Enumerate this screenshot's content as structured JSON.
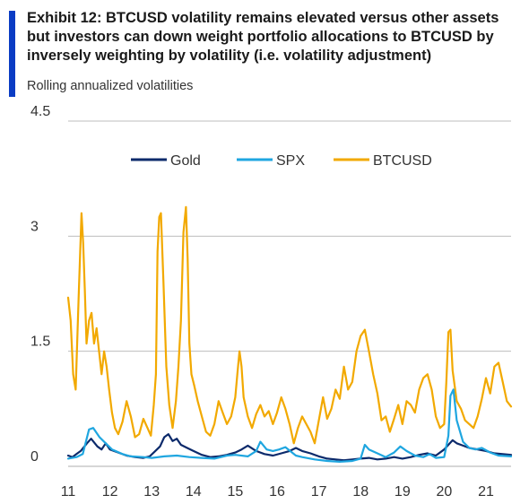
{
  "header": {
    "title": "Exhibit 12: BTCUSD volatility remains elevated versus other assets but investors can down weight portfolio allocations to BTCUSD by inversely weighting by volatility (i.e. volatility adjustment)",
    "subtitle": "Rolling annualized volatilities"
  },
  "colors": {
    "accent": "#0a3cc4",
    "gold": "#0c2a6b",
    "spx": "#1fa6e0",
    "btcusd": "#f2a900",
    "grid": "#bdbdbd"
  },
  "chart_data": {
    "type": "line",
    "title": "Exhibit 12: BTCUSD volatility remains elevated versus other assets but investors can down weight portfolio allocations to BTCUSD by inversely weighting by volatility (i.e. volatility adjustment)",
    "subtitle": "Rolling annualized volatilities",
    "xlabel": "",
    "ylabel": "",
    "xlim": [
      2011.0,
      2021.6
    ],
    "ylim": [
      0,
      4.5
    ],
    "y_ticks": [
      {
        "value": 0,
        "label": "0"
      },
      {
        "value": 1.5,
        "label": "1.5"
      },
      {
        "value": 3,
        "label": "3"
      },
      {
        "value": 4.5,
        "label": "4.5"
      }
    ],
    "x_ticks": [
      {
        "value": 2011,
        "label": "11"
      },
      {
        "value": 2012,
        "label": "12"
      },
      {
        "value": 2013,
        "label": "13"
      },
      {
        "value": 2014,
        "label": "14"
      },
      {
        "value": 2015,
        "label": "15"
      },
      {
        "value": 2016,
        "label": "16"
      },
      {
        "value": 2017,
        "label": "17"
      },
      {
        "value": 2018,
        "label": "18"
      },
      {
        "value": 2019,
        "label": "19"
      },
      {
        "value": 2020,
        "label": "20"
      },
      {
        "value": 2021,
        "label": "21"
      }
    ],
    "grid": true,
    "legend": "top-center",
    "series": [
      {
        "name": "Gold",
        "color": "#0c2a6b",
        "x": [
          2011.0,
          2011.1,
          2011.2,
          2011.3,
          2011.45,
          2011.55,
          2011.7,
          2011.8,
          2011.9,
          2012.0,
          2012.2,
          2012.4,
          2012.6,
          2012.8,
          2012.95,
          2013.05,
          2013.2,
          2013.3,
          2013.4,
          2013.5,
          2013.6,
          2013.7,
          2013.85,
          2014.0,
          2014.2,
          2014.4,
          2014.6,
          2014.8,
          2015.0,
          2015.15,
          2015.3,
          2015.5,
          2015.7,
          2015.9,
          2016.1,
          2016.3,
          2016.45,
          2016.6,
          2016.8,
          2017.0,
          2017.2,
          2017.4,
          2017.6,
          2017.8,
          2018.0,
          2018.2,
          2018.4,
          2018.6,
          2018.8,
          2019.0,
          2019.2,
          2019.4,
          2019.6,
          2019.8,
          2020.0,
          2020.1,
          2020.2,
          2020.3,
          2020.45,
          2020.6,
          2020.8,
          2021.0,
          2021.2,
          2021.4,
          2021.6
        ],
        "values": [
          0.14,
          0.12,
          0.16,
          0.2,
          0.3,
          0.36,
          0.26,
          0.22,
          0.3,
          0.22,
          0.18,
          0.14,
          0.12,
          0.11,
          0.13,
          0.18,
          0.26,
          0.38,
          0.42,
          0.33,
          0.36,
          0.28,
          0.24,
          0.2,
          0.15,
          0.12,
          0.13,
          0.15,
          0.18,
          0.22,
          0.27,
          0.2,
          0.16,
          0.14,
          0.17,
          0.2,
          0.24,
          0.2,
          0.17,
          0.13,
          0.1,
          0.09,
          0.08,
          0.09,
          0.1,
          0.11,
          0.09,
          0.1,
          0.12,
          0.1,
          0.12,
          0.15,
          0.17,
          0.14,
          0.22,
          0.28,
          0.34,
          0.3,
          0.27,
          0.24,
          0.22,
          0.2,
          0.17,
          0.16,
          0.15
        ]
      },
      {
        "name": "SPX",
        "color": "#1fa6e0",
        "x": [
          2011.0,
          2011.2,
          2011.35,
          2011.5,
          2011.6,
          2011.75,
          2011.9,
          2012.05,
          2012.3,
          2012.5,
          2012.8,
          2013.0,
          2013.3,
          2013.6,
          2013.9,
          2014.2,
          2014.5,
          2014.8,
          2015.0,
          2015.3,
          2015.5,
          2015.6,
          2015.75,
          2015.9,
          2016.05,
          2016.2,
          2016.45,
          2016.6,
          2016.9,
          2017.2,
          2017.5,
          2017.8,
          2018.0,
          2018.1,
          2018.2,
          2018.4,
          2018.6,
          2018.8,
          2018.95,
          2019.1,
          2019.3,
          2019.5,
          2019.65,
          2019.8,
          2020.0,
          2020.1,
          2020.15,
          2020.22,
          2020.3,
          2020.45,
          2020.6,
          2020.75,
          2020.9,
          2021.1,
          2021.3,
          2021.6
        ],
        "values": [
          0.1,
          0.12,
          0.16,
          0.48,
          0.5,
          0.38,
          0.3,
          0.22,
          0.16,
          0.13,
          0.12,
          0.11,
          0.13,
          0.14,
          0.12,
          0.11,
          0.1,
          0.14,
          0.15,
          0.13,
          0.2,
          0.32,
          0.22,
          0.2,
          0.22,
          0.25,
          0.14,
          0.12,
          0.09,
          0.07,
          0.06,
          0.07,
          0.1,
          0.28,
          0.22,
          0.17,
          0.12,
          0.18,
          0.26,
          0.2,
          0.14,
          0.12,
          0.16,
          0.11,
          0.12,
          0.4,
          0.92,
          1.0,
          0.6,
          0.32,
          0.24,
          0.22,
          0.24,
          0.18,
          0.14,
          0.13
        ]
      },
      {
        "name": "BTCUSD",
        "color": "#f2a900",
        "x": [
          2011.0,
          2011.06,
          2011.12,
          2011.18,
          2011.25,
          2011.32,
          2011.36,
          2011.4,
          2011.44,
          2011.5,
          2011.56,
          2011.62,
          2011.68,
          2011.74,
          2011.8,
          2011.86,
          2011.92,
          2011.98,
          2012.05,
          2012.12,
          2012.2,
          2012.3,
          2012.4,
          2012.5,
          2012.6,
          2012.7,
          2012.8,
          2012.9,
          2012.98,
          2013.05,
          2013.1,
          2013.14,
          2013.18,
          2013.22,
          2013.28,
          2013.35,
          2013.42,
          2013.5,
          2013.58,
          2013.64,
          2013.7,
          2013.76,
          2013.82,
          2013.86,
          2013.9,
          2013.95,
          2014.02,
          2014.1,
          2014.2,
          2014.3,
          2014.4,
          2014.5,
          2014.6,
          2014.7,
          2014.8,
          2014.9,
          2015.0,
          2015.05,
          2015.1,
          2015.15,
          2015.2,
          2015.3,
          2015.4,
          2015.5,
          2015.6,
          2015.7,
          2015.8,
          2015.9,
          2016.0,
          2016.1,
          2016.2,
          2016.3,
          2016.4,
          2016.5,
          2016.6,
          2016.7,
          2016.8,
          2016.9,
          2017.0,
          2017.1,
          2017.2,
          2017.3,
          2017.4,
          2017.5,
          2017.6,
          2017.7,
          2017.8,
          2017.9,
          2018.0,
          2018.1,
          2018.2,
          2018.3,
          2018.4,
          2018.5,
          2018.6,
          2018.7,
          2018.8,
          2018.9,
          2019.0,
          2019.1,
          2019.2,
          2019.3,
          2019.4,
          2019.5,
          2019.6,
          2019.7,
          2019.8,
          2019.9,
          2020.0,
          2020.05,
          2020.1,
          2020.15,
          2020.2,
          2020.3,
          2020.4,
          2020.5,
          2020.6,
          2020.7,
          2020.8,
          2020.9,
          2021.0,
          2021.1,
          2021.2,
          2021.3,
          2021.4,
          2021.5,
          2021.6
        ],
        "values": [
          2.2,
          1.9,
          1.2,
          1.0,
          2.2,
          3.3,
          2.9,
          2.3,
          1.6,
          1.9,
          2.0,
          1.6,
          1.8,
          1.5,
          1.2,
          1.5,
          1.3,
          1.0,
          0.7,
          0.5,
          0.42,
          0.58,
          0.85,
          0.65,
          0.38,
          0.42,
          0.62,
          0.5,
          0.4,
          0.8,
          1.2,
          2.8,
          3.25,
          3.3,
          2.4,
          1.3,
          0.8,
          0.5,
          0.85,
          1.3,
          1.9,
          3.05,
          3.38,
          2.7,
          1.6,
          1.2,
          1.05,
          0.85,
          0.65,
          0.45,
          0.4,
          0.55,
          0.85,
          0.7,
          0.55,
          0.65,
          0.9,
          1.2,
          1.5,
          1.3,
          0.9,
          0.65,
          0.5,
          0.68,
          0.8,
          0.65,
          0.72,
          0.55,
          0.7,
          0.9,
          0.75,
          0.55,
          0.3,
          0.5,
          0.65,
          0.55,
          0.45,
          0.3,
          0.6,
          0.9,
          0.62,
          0.75,
          1.0,
          0.88,
          1.3,
          1.0,
          1.1,
          1.5,
          1.7,
          1.78,
          1.5,
          1.2,
          0.95,
          0.6,
          0.65,
          0.45,
          0.62,
          0.8,
          0.55,
          0.85,
          0.8,
          0.7,
          1.0,
          1.15,
          1.2,
          1.0,
          0.65,
          0.5,
          0.55,
          1.1,
          1.75,
          1.78,
          1.25,
          0.85,
          0.75,
          0.6,
          0.55,
          0.5,
          0.65,
          0.88,
          1.15,
          0.95,
          1.3,
          1.35,
          1.1,
          0.85,
          0.78
        ]
      }
    ]
  }
}
